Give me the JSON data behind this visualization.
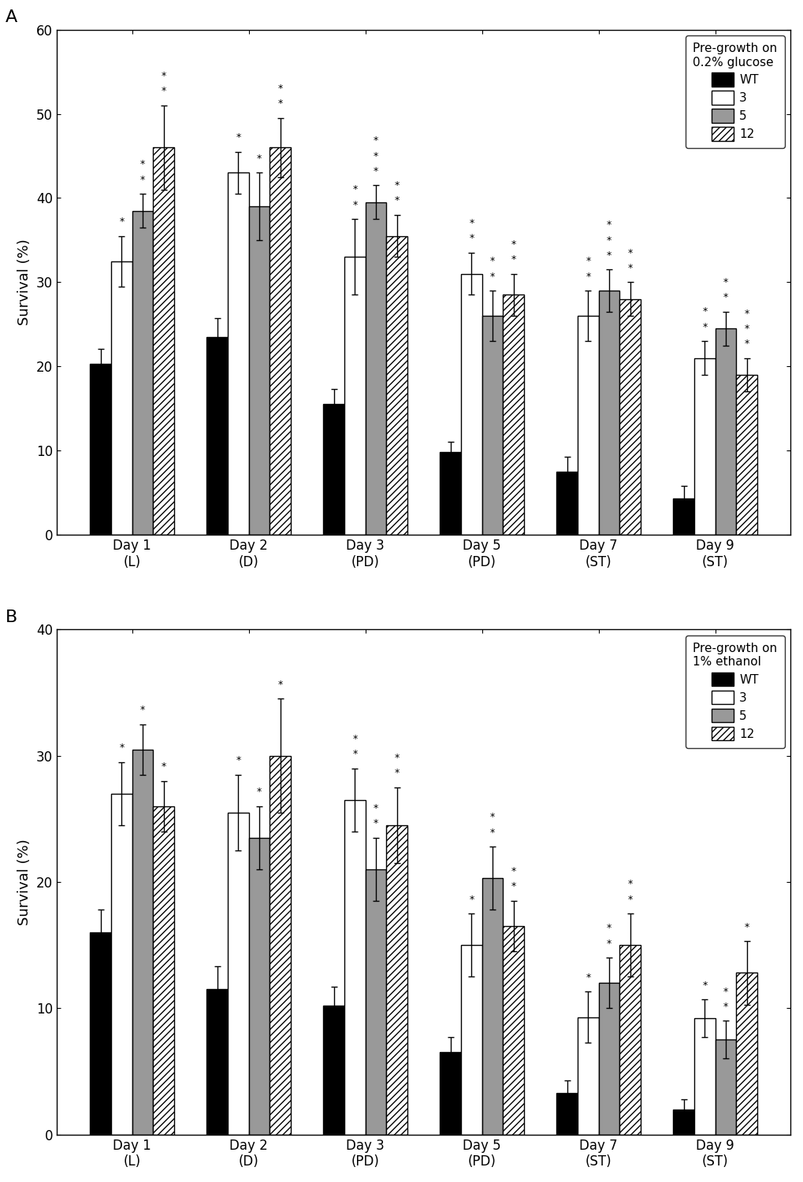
{
  "panel_A": {
    "title": "Pre-growth on\n0.2% glucose",
    "ylabel": "Survival (%)",
    "ylim": [
      0,
      60
    ],
    "yticks": [
      0,
      10,
      20,
      30,
      40,
      50,
      60
    ],
    "categories": [
      "Day 1\n(L)",
      "Day 2\n(D)",
      "Day 3\n(PD)",
      "Day 5\n(PD)",
      "Day 7\n(ST)",
      "Day 9\n(ST)"
    ],
    "WT": [
      20.3,
      23.5,
      15.5,
      9.8,
      7.5,
      4.3
    ],
    "S3": [
      32.5,
      43.0,
      33.0,
      31.0,
      26.0,
      21.0
    ],
    "S5": [
      38.5,
      39.0,
      39.5,
      26.0,
      29.0,
      24.5
    ],
    "S12": [
      46.0,
      46.0,
      35.5,
      28.5,
      28.0,
      19.0
    ],
    "WT_err": [
      1.8,
      2.2,
      1.8,
      1.2,
      1.8,
      1.5
    ],
    "S3_err": [
      3.0,
      2.5,
      4.5,
      2.5,
      3.0,
      2.0
    ],
    "S5_err": [
      2.0,
      4.0,
      2.0,
      3.0,
      2.5,
      2.0
    ],
    "S12_err": [
      5.0,
      3.5,
      2.5,
      2.5,
      2.0,
      2.0
    ],
    "stars_S3": [
      "*",
      "*",
      "**",
      "**",
      "**",
      "**"
    ],
    "stars_S5": [
      "**",
      "*",
      "***",
      "**",
      "***",
      "**"
    ],
    "stars_S12": [
      "**",
      "**",
      "**",
      "**",
      "**",
      "***"
    ]
  },
  "panel_B": {
    "title": "Pre-growth on\n1% ethanol",
    "ylabel": "Survival (%)",
    "ylim": [
      0,
      40
    ],
    "yticks": [
      0,
      10,
      20,
      30,
      40
    ],
    "categories": [
      "Day 1\n(L)",
      "Day 2\n(D)",
      "Day 3\n(PD)",
      "Day 5\n(PD)",
      "Day 7\n(ST)",
      "Day 9\n(ST)"
    ],
    "WT": [
      16.0,
      11.5,
      10.2,
      6.5,
      3.3,
      2.0
    ],
    "S3": [
      27.0,
      25.5,
      26.5,
      15.0,
      9.3,
      9.2
    ],
    "S5": [
      30.5,
      23.5,
      21.0,
      20.3,
      12.0,
      7.5
    ],
    "S12": [
      26.0,
      30.0,
      24.5,
      16.5,
      15.0,
      12.8
    ],
    "WT_err": [
      1.8,
      1.8,
      1.5,
      1.2,
      1.0,
      0.8
    ],
    "S3_err": [
      2.5,
      3.0,
      2.5,
      2.5,
      2.0,
      1.5
    ],
    "S5_err": [
      2.0,
      2.5,
      2.5,
      2.5,
      2.0,
      1.5
    ],
    "S12_err": [
      2.0,
      4.5,
      3.0,
      2.0,
      2.5,
      2.5
    ],
    "stars_S3": [
      "*",
      "*",
      "**",
      "*",
      "*",
      "*"
    ],
    "stars_S5": [
      "*",
      "*",
      "**",
      "**",
      "**",
      "**"
    ],
    "stars_S12": [
      "*",
      "*",
      "**",
      "**",
      "**",
      "*"
    ]
  },
  "bar_colors": {
    "WT": "#000000",
    "S3": "#ffffff",
    "S5": "#999999",
    "S12_hatch": "////"
  },
  "bar_edgecolor": "#000000",
  "bar_width": 0.18,
  "figsize": [
    10.2,
    15.01
  ],
  "dpi": 100,
  "label_A": "A",
  "label_B": "B"
}
